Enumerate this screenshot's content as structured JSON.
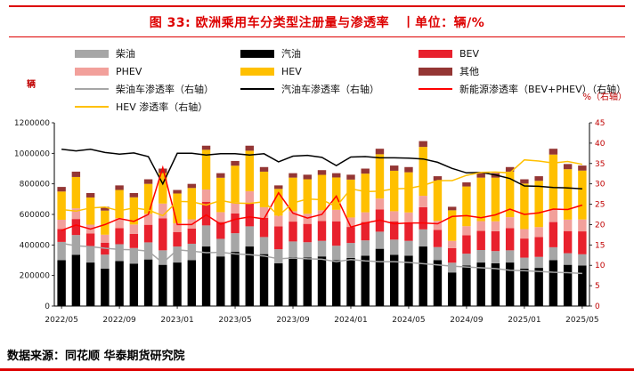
{
  "header": {
    "title": "图 33: 欧洲乘用车分类型注册量与渗透率　丨单位：辆/%"
  },
  "footer": {
    "source": "数据来源：同花顺  华泰期货研究院"
  },
  "chart_data": {
    "type": "stacked-bar+line",
    "title": "欧洲乘用车分类型注册量与渗透率",
    "categories": [
      "2022/05",
      "2022/06",
      "2022/07",
      "2022/08",
      "2022/09",
      "2022/10",
      "2022/11",
      "2022/12",
      "2023/01",
      "2023/02",
      "2023/03",
      "2023/04",
      "2023/05",
      "2023/06",
      "2023/07",
      "2023/08",
      "2023/09",
      "2023/10",
      "2023/11",
      "2023/12",
      "2024/01",
      "2024/02",
      "2024/03",
      "2024/04",
      "2024/05",
      "2024/06",
      "2024/07",
      "2024/08",
      "2024/09",
      "2024/10",
      "2024/11",
      "2024/12",
      "2025/01",
      "2025/02",
      "2025/03",
      "2025/04",
      "2025/05"
    ],
    "x_tick_every": 4,
    "left_axis": {
      "label": "辆",
      "min": 0,
      "max": 1200000,
      "step": 200000
    },
    "right_axis": {
      "label": "%（右轴）",
      "min": 0,
      "max": 45,
      "step": 5
    },
    "legend": [
      {
        "label": "柴油",
        "color": "#a6a6a6",
        "type": "bar"
      },
      {
        "label": "汽油",
        "color": "#000000",
        "type": "bar"
      },
      {
        "label": "BEV",
        "color": "#e8212d",
        "type": "bar"
      },
      {
        "label": "PHEV",
        "color": "#f2a09b",
        "type": "bar"
      },
      {
        "label": "HEV",
        "color": "#ffc000",
        "type": "bar"
      },
      {
        "label": "其他",
        "color": "#943634",
        "type": "bar"
      },
      {
        "label": "柴油车渗透率（右轴）",
        "color": "#a6a6a6",
        "type": "line"
      },
      {
        "label": "汽油车渗透率（右轴）",
        "color": "#000000",
        "type": "line"
      },
      {
        "label": "新能源渗透率（BEV+PHEV）（右轴）",
        "color": "#ff0000",
        "type": "line"
      },
      {
        "label": "HEV 渗透率（右轴）",
        "color": "#ffc000",
        "type": "line"
      }
    ],
    "bar_series": [
      {
        "name": "汽油",
        "key": "gasoline",
        "color": "#000000",
        "values": [
          300000,
          335000,
          285000,
          245000,
          295000,
          278000,
          305000,
          270000,
          285000,
          300000,
          390000,
          325000,
          355000,
          390000,
          340000,
          280000,
          320000,
          318000,
          325000,
          300000,
          315000,
          330000,
          375000,
          335000,
          330000,
          390000,
          300000,
          220000,
          265000,
          285000,
          280000,
          285000,
          245000,
          250000,
          300000,
          270000,
          265000
        ]
      },
      {
        "name": "柴油",
        "key": "diesel",
        "color": "#a6a6a6",
        "values": [
          120000,
          130000,
          108000,
          92000,
          110000,
          102000,
          112000,
          95000,
          105000,
          108000,
          138000,
          115000,
          122000,
          132000,
          112000,
          92000,
          103000,
          100000,
          102000,
          95000,
          98000,
          100000,
          112000,
          100000,
          97000,
          112000,
          86000,
          64000,
          78000,
          82000,
          80000,
          80000,
          72000,
          72000,
          85000,
          76000,
          74000
        ]
      },
      {
        "name": "BEV",
        "key": "bev",
        "color": "#e8212d",
        "values": [
          85000,
          105000,
          82000,
          78000,
          105000,
          92000,
          115000,
          210000,
          95000,
          100000,
          155000,
          110000,
          130000,
          150000,
          125000,
          150000,
          130000,
          120000,
          130000,
          160000,
          105000,
          120000,
          145000,
          120000,
          120000,
          145000,
          112000,
          95000,
          120000,
          125000,
          130000,
          145000,
          125000,
          130000,
          165000,
          145000,
          150000
        ]
      },
      {
        "name": "PHEV",
        "key": "phev",
        "color": "#f2a09b",
        "values": [
          60000,
          70000,
          58000,
          52000,
          65000,
          62000,
          72000,
          96000,
          57000,
          60000,
          80000,
          65000,
          72000,
          80000,
          70000,
          70000,
          68000,
          66000,
          70000,
          75000,
          62000,
          64000,
          72000,
          66000,
          66000,
          75000,
          60000,
          48000,
          60000,
          64000,
          65000,
          72000,
          62000,
          65000,
          80000,
          75000,
          78000
        ]
      },
      {
        "name": "HEV",
        "key": "hev",
        "color": "#ffc000",
        "values": [
          185000,
          205000,
          178000,
          158000,
          185000,
          178000,
          196000,
          200000,
          195000,
          205000,
          260000,
          225000,
          240000,
          265000,
          233000,
          175000,
          220000,
          226000,
          232000,
          212000,
          248000,
          253000,
          290000,
          265000,
          263000,
          320000,
          262000,
          200000,
          260000,
          285000,
          286000,
          298000,
          298000,
          303000,
          362000,
          330000,
          320000
        ]
      },
      {
        "name": "其他",
        "key": "other",
        "color": "#943634",
        "values": [
          30000,
          35000,
          29000,
          25000,
          30000,
          28000,
          30000,
          29000,
          23000,
          27000,
          27000,
          30000,
          31000,
          33000,
          30000,
          23000,
          29000,
          30000,
          31000,
          28000,
          32000,
          33000,
          36000,
          34000,
          34000,
          38000,
          30000,
          23000,
          27000,
          29000,
          29000,
          30000,
          28000,
          30000,
          38000,
          34000,
          33000
        ]
      }
    ],
    "line_series": [
      {
        "name": "柴油车渗透率（右轴）",
        "key": "diesel-penetration",
        "color": "#a6a6a6",
        "values": [
          15.4,
          14.8,
          14.6,
          14.2,
          13.9,
          13.8,
          13.5,
          10.6,
          13.8,
          13.5,
          13.1,
          13.2,
          12.8,
          12.6,
          12.3,
          11.6,
          11.8,
          11.6,
          11.5,
          10.9,
          11.4,
          11.1,
          10.9,
          10.9,
          10.7,
          10.4,
          10.1,
          9.8,
          9.6,
          9.4,
          9.2,
          8.8,
          8.7,
          8.5,
          8.3,
          8.2,
          8.0
        ]
      },
      {
        "name": "汽油车渗透率（右轴）",
        "key": "gasoline-penetration",
        "color": "#000000",
        "values": [
          38.5,
          38.1,
          38.5,
          37.7,
          37.3,
          37.6,
          36.7,
          30.0,
          37.5,
          37.5,
          37.1,
          37.4,
          37.4,
          37.1,
          37.4,
          35.4,
          36.8,
          37.0,
          36.5,
          34.5,
          36.6,
          36.7,
          36.4,
          36.4,
          36.3,
          36.1,
          35.3,
          33.8,
          32.7,
          32.8,
          32.2,
          31.3,
          29.5,
          29.4,
          29.1,
          29.0,
          28.8
        ]
      },
      {
        "name": "新能源渗透率（BEV+PHEV）（右轴）",
        "key": "nev-penetration",
        "color": "#ff0000",
        "values": [
          18.6,
          19.9,
          18.9,
          20.0,
          21.5,
          20.8,
          22.5,
          34.0,
          20.0,
          20.0,
          22.4,
          20.1,
          21.3,
          21.9,
          21.4,
          27.8,
          22.8,
          21.6,
          22.5,
          27.0,
          19.4,
          20.4,
          21.1,
          20.2,
          20.4,
          20.4,
          20.2,
          22.0,
          22.2,
          21.7,
          22.4,
          23.8,
          22.5,
          22.9,
          23.8,
          23.7,
          24.8
        ]
      },
      {
        "name": "HEV 渗透率（右轴）",
        "key": "hev-penetration",
        "color": "#ffc000",
        "values": [
          23.7,
          23.3,
          24.1,
          24.3,
          23.4,
          24.1,
          23.6,
          22.2,
          25.7,
          25.6,
          24.8,
          25.9,
          25.3,
          25.2,
          25.6,
          22.2,
          25.3,
          26.3,
          26.1,
          24.4,
          28.8,
          28.1,
          28.2,
          28.8,
          28.9,
          29.6,
          30.8,
          30.8,
          32.1,
          32.8,
          32.9,
          32.7,
          35.9,
          35.6,
          35.1,
          35.5,
          34.8
        ]
      }
    ]
  }
}
